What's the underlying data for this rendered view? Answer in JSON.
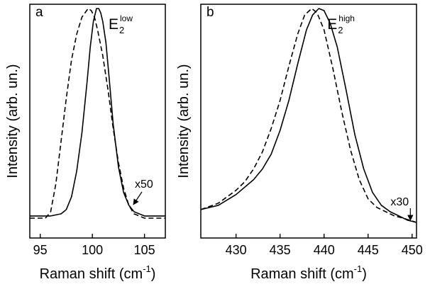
{
  "chart_data": [
    {
      "type": "line",
      "panel_label": "a",
      "xlabel_base": "Raman shift (cm",
      "xlabel_exp": "-1",
      "xlabel_tail": ")",
      "ylabel": "Intensity (arb. un.)",
      "xlim": [
        94,
        107
      ],
      "ylim": [
        0,
        1
      ],
      "xticks": [
        95,
        100,
        105
      ],
      "yticks": [],
      "grid": false,
      "peak_label": {
        "base": "E",
        "sub": "2",
        "sup": "low"
      },
      "annotation": {
        "text": "x50",
        "arrow_to": [
          103.8,
          0.07
        ]
      },
      "series": [
        {
          "style": "solid",
          "x": [
            94.0,
            96.0,
            97.0,
            97.5,
            98.0,
            98.5,
            99.0,
            99.5,
            99.8,
            100.1,
            100.4,
            100.6,
            100.8,
            101.0,
            101.3,
            101.6,
            102.0,
            102.5,
            103.0,
            103.5,
            104.0,
            105.0,
            106.0,
            107.0
          ],
          "y": [
            0.03,
            0.03,
            0.04,
            0.06,
            0.12,
            0.24,
            0.42,
            0.66,
            0.82,
            0.94,
            1.0,
            1.0,
            0.98,
            0.94,
            0.84,
            0.68,
            0.46,
            0.26,
            0.14,
            0.08,
            0.05,
            0.03,
            0.03,
            0.03
          ]
        },
        {
          "style": "dashed",
          "x": [
            94.0,
            95.5,
            96.0,
            96.5,
            97.0,
            97.5,
            98.0,
            98.5,
            99.0,
            99.3,
            99.6,
            99.9,
            100.2,
            100.5,
            101.0,
            101.5,
            102.0,
            102.5,
            103.0,
            103.5,
            104.0,
            104.5,
            105.0,
            106.0,
            107.0
          ],
          "y": [
            0.02,
            0.02,
            0.05,
            0.18,
            0.38,
            0.58,
            0.76,
            0.88,
            0.96,
            0.98,
            1.0,
            0.99,
            0.96,
            0.9,
            0.78,
            0.62,
            0.44,
            0.28,
            0.16,
            0.08,
            0.04,
            0.03,
            0.02,
            0.02,
            0.02
          ]
        }
      ]
    },
    {
      "type": "line",
      "panel_label": "b",
      "xlabel_base": "Raman shift (cm",
      "xlabel_exp": "-1",
      "xlabel_tail": ")",
      "ylabel": "Intensity (arb. un.)",
      "xlim": [
        426,
        450.5
      ],
      "ylim": [
        0,
        1
      ],
      "xticks": [
        430,
        435,
        440,
        445,
        450
      ],
      "yticks": [],
      "grid": false,
      "peak_label": {
        "base": "E",
        "sub": "2",
        "sup": "high"
      },
      "annotation": {
        "text": "x30",
        "arrow_to": [
          449.8,
          0.0
        ]
      },
      "series": [
        {
          "style": "solid",
          "x": [
            426.0,
            428.0,
            430.0,
            432.0,
            433.0,
            434.0,
            435.0,
            436.0,
            437.0,
            438.0,
            438.7,
            439.4,
            440.0,
            440.7,
            441.5,
            442.5,
            443.5,
            444.5,
            445.5,
            446.5,
            447.5,
            448.5,
            449.5,
            450.5
          ],
          "y": [
            0.06,
            0.08,
            0.13,
            0.2,
            0.25,
            0.32,
            0.43,
            0.57,
            0.74,
            0.9,
            0.97,
            1.0,
            0.99,
            0.93,
            0.82,
            0.62,
            0.41,
            0.25,
            0.14,
            0.08,
            0.05,
            0.03,
            0.01,
            0.0
          ]
        },
        {
          "style": "dashed",
          "x": [
            426.0,
            428.0,
            430.0,
            431.0,
            432.0,
            433.0,
            434.0,
            435.0,
            436.0,
            437.0,
            437.8,
            438.6,
            439.2,
            440.0,
            441.0,
            442.0,
            443.0,
            444.0,
            445.0,
            446.0,
            447.0,
            448.0,
            449.0,
            450.5
          ],
          "y": [
            0.06,
            0.09,
            0.15,
            0.19,
            0.25,
            0.33,
            0.44,
            0.57,
            0.73,
            0.88,
            0.97,
            1.0,
            0.98,
            0.9,
            0.72,
            0.52,
            0.34,
            0.2,
            0.11,
            0.07,
            0.05,
            0.03,
            0.02,
            0.0
          ]
        }
      ]
    }
  ]
}
